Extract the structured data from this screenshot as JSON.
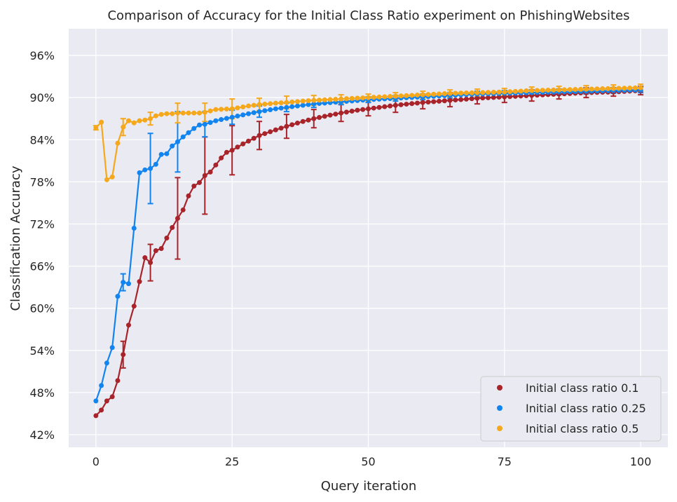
{
  "chart_data": {
    "type": "line",
    "title": "Comparison of Accuracy for the Initial Class Ratio experiment on PhishingWebsites",
    "xlabel": "Query iteration",
    "ylabel": "Classification Accuracy",
    "xlim": [
      -5,
      105
    ],
    "ylim": [
      40.2,
      99.8
    ],
    "xticks": [
      0,
      25,
      50,
      75,
      100
    ],
    "xtick_labels": [
      "0",
      "25",
      "50",
      "75",
      "100"
    ],
    "yticks": [
      42,
      48,
      54,
      60,
      66,
      72,
      78,
      84,
      90,
      96
    ],
    "ytick_labels": [
      "42%",
      "48%",
      "54%",
      "60%",
      "66%",
      "72%",
      "78%",
      "84%",
      "90%",
      "96%"
    ],
    "grid": true,
    "legend_position": "bottom-right",
    "background_color": "#eaeaf2",
    "series": [
      {
        "name": "Initial class ratio 0.1",
        "color": "#a8242a",
        "marker_size": 3.5,
        "knots": [
          [
            0,
            44.7
          ],
          [
            1,
            45.5
          ],
          [
            2,
            46.8
          ],
          [
            3,
            47.4
          ],
          [
            4,
            49.7
          ],
          [
            5,
            53.4
          ],
          [
            6,
            57.6
          ],
          [
            7,
            60.3
          ],
          [
            8,
            63.8
          ],
          [
            9,
            67.2
          ],
          [
            10,
            66.5
          ],
          [
            11,
            68.2
          ],
          [
            12,
            68.5
          ],
          [
            13,
            70.0
          ],
          [
            14,
            71.5
          ],
          [
            15,
            72.8
          ],
          [
            16,
            74.0
          ],
          [
            17,
            76.0
          ],
          [
            18,
            77.4
          ],
          [
            19,
            77.9
          ],
          [
            20,
            78.9
          ],
          [
            21,
            79.4
          ],
          [
            22,
            80.4
          ],
          [
            23,
            81.4
          ],
          [
            24,
            82.2
          ],
          [
            25,
            82.5
          ],
          [
            27,
            83.4
          ],
          [
            30,
            84.6
          ],
          [
            33,
            85.4
          ],
          [
            35,
            85.9
          ],
          [
            38,
            86.6
          ],
          [
            40,
            87.0
          ],
          [
            43,
            87.5
          ],
          [
            45,
            87.8
          ],
          [
            48,
            88.2
          ],
          [
            50,
            88.4
          ],
          [
            55,
            88.9
          ],
          [
            60,
            89.3
          ],
          [
            65,
            89.6
          ],
          [
            70,
            89.9
          ],
          [
            75,
            90.1
          ],
          [
            80,
            90.3
          ],
          [
            85,
            90.5
          ],
          [
            90,
            90.7
          ],
          [
            95,
            90.8
          ],
          [
            100,
            91.0
          ]
        ],
        "error_bars": [
          [
            5,
            53.4,
            1.9
          ],
          [
            10,
            66.5,
            2.6
          ],
          [
            15,
            72.8,
            5.8
          ],
          [
            20,
            78.9,
            5.5
          ],
          [
            25,
            82.5,
            3.5
          ],
          [
            30,
            84.6,
            2.0
          ],
          [
            35,
            85.9,
            1.7
          ],
          [
            40,
            87.0,
            1.3
          ],
          [
            45,
            87.8,
            1.2
          ],
          [
            50,
            88.4,
            1.0
          ],
          [
            55,
            88.9,
            1.0
          ],
          [
            60,
            89.3,
            0.9
          ],
          [
            65,
            89.6,
            0.9
          ],
          [
            70,
            89.9,
            0.8
          ],
          [
            75,
            90.1,
            0.8
          ],
          [
            80,
            90.3,
            0.8
          ],
          [
            85,
            90.5,
            0.7
          ],
          [
            90,
            90.7,
            0.7
          ],
          [
            95,
            90.8,
            0.6
          ],
          [
            100,
            91.0,
            0.6
          ]
        ]
      },
      {
        "name": "Initial class ratio 0.25",
        "color": "#1284f0",
        "marker_size": 3.5,
        "knots": [
          [
            0,
            46.8
          ],
          [
            1,
            49.0
          ],
          [
            2,
            52.2
          ],
          [
            3,
            54.4
          ],
          [
            4,
            61.7
          ],
          [
            5,
            63.7
          ],
          [
            6,
            63.5
          ],
          [
            7,
            71.4
          ],
          [
            8,
            79.3
          ],
          [
            9,
            79.7
          ],
          [
            10,
            79.9
          ],
          [
            11,
            80.5
          ],
          [
            12,
            81.9
          ],
          [
            13,
            82.0
          ],
          [
            14,
            83.1
          ],
          [
            15,
            83.7
          ],
          [
            16,
            84.4
          ],
          [
            17,
            85.0
          ],
          [
            18,
            85.6
          ],
          [
            19,
            86.1
          ],
          [
            20,
            86.2
          ],
          [
            22,
            86.7
          ],
          [
            25,
            87.2
          ],
          [
            28,
            87.7
          ],
          [
            30,
            88.0
          ],
          [
            33,
            88.4
          ],
          [
            35,
            88.6
          ],
          [
            38,
            88.9
          ],
          [
            40,
            89.1
          ],
          [
            45,
            89.4
          ],
          [
            50,
            89.7
          ],
          [
            55,
            89.9
          ],
          [
            60,
            90.1
          ],
          [
            65,
            90.3
          ],
          [
            70,
            90.5
          ],
          [
            75,
            90.6
          ],
          [
            80,
            90.7
          ],
          [
            85,
            90.8
          ],
          [
            90,
            90.9
          ],
          [
            95,
            91.0
          ],
          [
            100,
            91.1
          ]
        ],
        "error_bars": [
          [
            5,
            63.7,
            1.2
          ],
          [
            10,
            79.9,
            5.0
          ],
          [
            15,
            83.7,
            4.3
          ],
          [
            20,
            86.2,
            1.8
          ],
          [
            25,
            87.2,
            1.0
          ],
          [
            30,
            88.0,
            0.8
          ],
          [
            35,
            88.6,
            0.6
          ],
          [
            40,
            89.1,
            0.5
          ],
          [
            45,
            89.4,
            0.4
          ],
          [
            50,
            89.7,
            0.4
          ],
          [
            55,
            89.9,
            0.4
          ],
          [
            60,
            90.1,
            0.4
          ],
          [
            65,
            90.3,
            0.4
          ],
          [
            70,
            90.5,
            0.4
          ],
          [
            75,
            90.6,
            0.4
          ],
          [
            80,
            90.7,
            0.4
          ],
          [
            85,
            90.8,
            0.4
          ],
          [
            90,
            90.9,
            0.4
          ],
          [
            95,
            91.0,
            0.4
          ],
          [
            100,
            91.1,
            0.4
          ]
        ]
      },
      {
        "name": "Initial class ratio 0.5",
        "color": "#f6a81c",
        "marker_size": 3.5,
        "knots": [
          [
            0,
            85.7
          ],
          [
            1,
            86.5
          ],
          [
            2,
            78.3
          ],
          [
            3,
            78.7
          ],
          [
            4,
            83.5
          ],
          [
            5,
            85.8
          ],
          [
            6,
            86.7
          ],
          [
            7,
            86.4
          ],
          [
            8,
            86.7
          ],
          [
            9,
            86.8
          ],
          [
            10,
            87.0
          ],
          [
            11,
            87.4
          ],
          [
            12,
            87.6
          ],
          [
            13,
            87.7
          ],
          [
            14,
            87.7
          ],
          [
            15,
            87.8
          ],
          [
            16,
            87.8
          ],
          [
            17,
            87.8
          ],
          [
            18,
            87.8
          ],
          [
            19,
            87.8
          ],
          [
            20,
            87.9
          ],
          [
            22,
            88.3
          ],
          [
            25,
            88.4
          ],
          [
            28,
            88.8
          ],
          [
            30,
            89.0
          ],
          [
            33,
            89.2
          ],
          [
            35,
            89.3
          ],
          [
            38,
            89.5
          ],
          [
            40,
            89.6
          ],
          [
            45,
            89.8
          ],
          [
            50,
            90.0
          ],
          [
            55,
            90.2
          ],
          [
            60,
            90.4
          ],
          [
            65,
            90.6
          ],
          [
            70,
            90.7
          ],
          [
            75,
            90.8
          ],
          [
            80,
            91.0
          ],
          [
            85,
            91.1
          ],
          [
            90,
            91.2
          ],
          [
            95,
            91.3
          ],
          [
            100,
            91.4
          ]
        ],
        "error_bars": [
          [
            0,
            85.7,
            0.3
          ],
          [
            5,
            85.8,
            1.2
          ],
          [
            10,
            87.0,
            0.9
          ],
          [
            15,
            87.8,
            1.4
          ],
          [
            20,
            87.9,
            1.3
          ],
          [
            25,
            88.4,
            1.4
          ],
          [
            30,
            89.0,
            0.9
          ],
          [
            35,
            89.3,
            0.9
          ],
          [
            40,
            89.6,
            0.7
          ],
          [
            45,
            89.8,
            0.6
          ],
          [
            50,
            90.0,
            0.5
          ],
          [
            55,
            90.2,
            0.5
          ],
          [
            60,
            90.4,
            0.5
          ],
          [
            65,
            90.6,
            0.5
          ],
          [
            70,
            90.7,
            0.5
          ],
          [
            75,
            90.8,
            0.5
          ],
          [
            80,
            91.0,
            0.5
          ],
          [
            85,
            91.1,
            0.5
          ],
          [
            90,
            91.2,
            0.5
          ],
          [
            95,
            91.3,
            0.5
          ],
          [
            100,
            91.4,
            0.5
          ]
        ]
      }
    ]
  }
}
